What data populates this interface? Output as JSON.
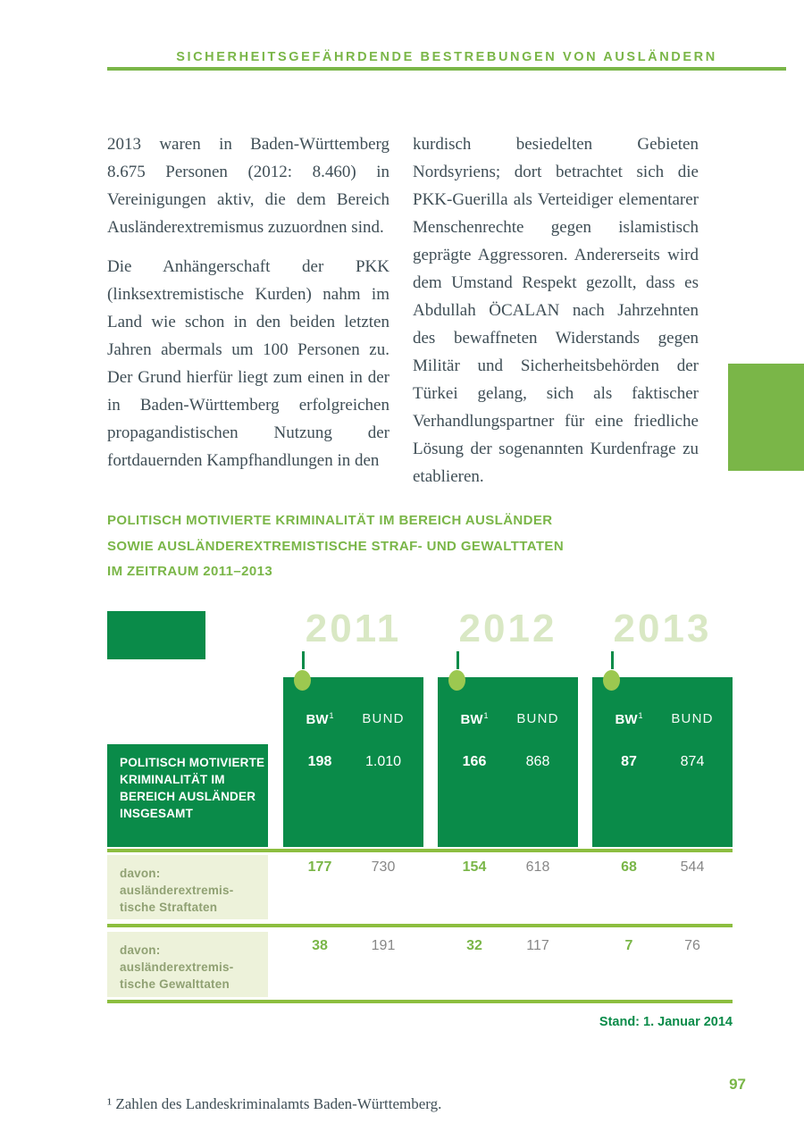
{
  "page": {
    "header_title": "SICHERHEITSGEFÄHRDENDE BESTREBUNGEN VON AUSLÄNDERN",
    "page_number": "97",
    "footnote": "¹ Zahlen des Landeskriminalamts Baden-Württemberg."
  },
  "article": {
    "left_column": {
      "p1": "2013 waren in Baden-Württemberg 8.675 Personen (2012: 8.460) in Vereinigungen aktiv, die dem Bereich Ausländerextremismus zuzuordnen sind.",
      "p2": "Die Anhängerschaft der PKK (linksextremistische Kurden) nahm im Land wie schon in den beiden letzten Jahren abermals um 100 Personen zu. Der Grund hierfür liegt zum einen in der in Baden-Württemberg erfolgreichen propagandistischen Nutzung der fortdauernden Kampfhandlungen in den"
    },
    "right_column": {
      "p1": "kurdisch besiedelten Gebieten Nordsyriens; dort betrachtet sich die PKK-Guerilla als Verteidiger elementarer Menschenrechte gegen islamistisch geprägte Aggressoren. Andererseits wird dem Umstand Respekt gezollt, dass es Abdullah ÖCALAN nach Jahrzehnten des bewaffneten Widerstands gegen Militär und Sicherheitsbehörden der Türkei gelang, sich als faktischer Verhandlungspartner für eine friedliche Lösung der sogenannten Kurdenfrage zu etablieren."
    }
  },
  "infographic": {
    "title": "POLITISCH MOTIVIERTE KRIMINALITÄT IM BEREICH AUSLÄNDER\nSOWIE AUSLÄNDEREXTREMISTISCHE STRAF- UND GEWALTTATEN\nIM ZEITRAUM 2011–2013",
    "years": [
      "2011",
      "2012",
      "2013"
    ],
    "col_bw": "BW",
    "col_bw_sup": "1",
    "col_bund": "BUND",
    "rows": [
      {
        "label": "POLITISCH MOTIVIERTE\nKRIMINALITÄT IM\nBEREICH AUSLÄNDER\nINSGESAMT",
        "values": [
          "198",
          "1.010",
          "166",
          "868",
          "87",
          "874"
        ]
      },
      {
        "label": "davon:\nausländerextremis-\ntische Straftaten",
        "values": [
          "177",
          "730",
          "154",
          "618",
          "68",
          "544"
        ]
      },
      {
        "label": "davon:\nausländerextremis-\ntische Gewalttaten",
        "values": [
          "38",
          "191",
          "32",
          "117",
          "7",
          "76"
        ]
      }
    ],
    "stand": "Stand: 1. Januar 2014"
  },
  "colors": {
    "accent_green": "#7ab648",
    "dark_green": "#0a8b49",
    "pale_year_green": "#d9e8c4",
    "pale_row_bg": "#edf2da",
    "value_gray": "#878787"
  },
  "chart_data": {
    "type": "table",
    "title": "Politisch motivierte Kriminalität im Bereich Ausländer sowie ausländerextremistische Straf- und Gewalttaten im Zeitraum 2011–2013",
    "categories": [
      "2011",
      "2012",
      "2013"
    ],
    "series": [
      {
        "name": "PMK im Bereich Ausländer insgesamt – BW",
        "values": [
          198,
          166,
          87
        ]
      },
      {
        "name": "PMK im Bereich Ausländer insgesamt – BUND",
        "values": [
          1010,
          868,
          874
        ]
      },
      {
        "name": "davon: ausländerextremistische Straftaten – BW",
        "values": [
          177,
          154,
          68
        ]
      },
      {
        "name": "davon: ausländerextremistische Straftaten – BUND",
        "values": [
          730,
          618,
          544
        ]
      },
      {
        "name": "davon: ausländerextremistische Gewalttaten – BW",
        "values": [
          38,
          32,
          7
        ]
      },
      {
        "name": "davon: ausländerextremistische Gewalttaten – BUND",
        "values": [
          191,
          117,
          76
        ]
      }
    ],
    "footnote": "¹ Zahlen des Landeskriminalamts Baden-Württemberg.",
    "stand": "Stand: 1. Januar 2014"
  }
}
